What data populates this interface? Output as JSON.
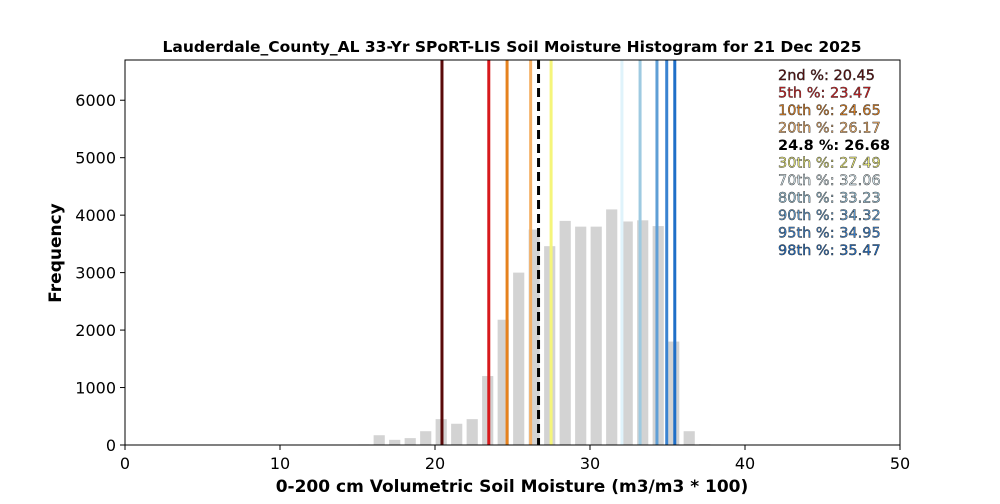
{
  "chart_data": {
    "type": "bar",
    "title": "Lauderdale_County_AL 33-Yr SPoRT-LIS Soil Moisture Histogram for 21 Dec 2025",
    "xlabel": "0-200 cm Volumetric Soil Moisture (m3/m3 * 100)",
    "ylabel": "Frequency",
    "xlim": [
      0,
      50
    ],
    "ylim": [
      0,
      6700
    ],
    "x_ticks": [
      "0",
      "10",
      "20",
      "30",
      "40",
      "50"
    ],
    "y_ticks": [
      "0",
      "1000",
      "2000",
      "3000",
      "4000",
      "5000",
      "6000"
    ],
    "bar_color": "#d3d3d3",
    "histogram": {
      "x": [
        15.4,
        16.4,
        17.4,
        18.4,
        19.4,
        20.4,
        21.4,
        22.4,
        23.4,
        24.4,
        25.4,
        26.4,
        27.4,
        28.4,
        29.4,
        30.4,
        31.4,
        32.4,
        33.4,
        34.4,
        35.4,
        36.4,
        37.4
      ],
      "values": [
        10,
        170,
        90,
        120,
        240,
        450,
        370,
        450,
        1200,
        2180,
        3000,
        3750,
        3460,
        3900,
        3800,
        3800,
        4100,
        3890,
        3910,
        3810,
        1800,
        240,
        15
      ]
    },
    "percentile_lines": [
      {
        "label": "2nd %: 20.45",
        "x": 20.45,
        "color": "#5a0a0a",
        "dashed": false
      },
      {
        "label": "5th %: 23.47",
        "x": 23.47,
        "color": "#d7191c",
        "dashed": false
      },
      {
        "label": "10th %: 24.65",
        "x": 24.65,
        "color": "#e6821e",
        "dashed": false
      },
      {
        "label": "20th %: 26.17",
        "x": 26.17,
        "color": "#f4b168",
        "dashed": false
      },
      {
        "label": "24.8 %: 26.68",
        "x": 26.68,
        "color": "#000000",
        "dashed": true
      },
      {
        "label": "30th %: 27.49",
        "x": 27.49,
        "color": "#f5f57a",
        "dashed": false
      },
      {
        "label": "70th %: 32.06",
        "x": 32.06,
        "color": "#dff3fb",
        "dashed": false
      },
      {
        "label": "80th %: 33.23",
        "x": 33.23,
        "color": "#9ecae1",
        "dashed": false
      },
      {
        "label": "90th %: 34.32",
        "x": 34.32,
        "color": "#5f9fd6",
        "dashed": false
      },
      {
        "label": "95th %: 34.95",
        "x": 34.95,
        "color": "#3a83d1",
        "dashed": false
      },
      {
        "label": "98th %: 35.47",
        "x": 35.47,
        "color": "#1f6fc8",
        "dashed": false
      }
    ],
    "legend_placement": "top-right",
    "grid": false
  }
}
